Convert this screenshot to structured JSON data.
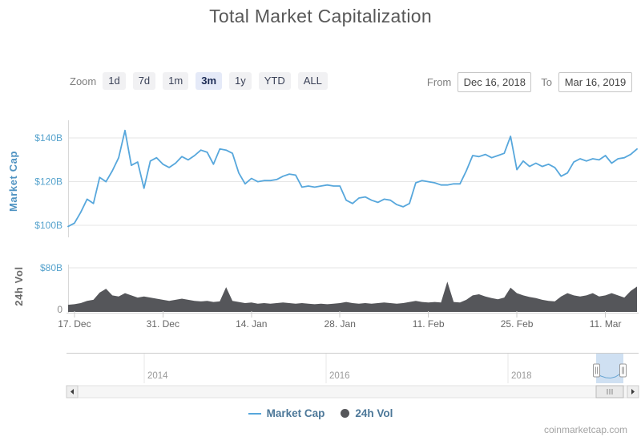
{
  "page": {
    "watermark": "coinmarketcap.com"
  },
  "controls": {
    "zoom_label": "Zoom",
    "zoom_buttons": [
      {
        "label": "1d",
        "selected": false
      },
      {
        "label": "7d",
        "selected": false
      },
      {
        "label": "1m",
        "selected": false
      },
      {
        "label": "3m",
        "selected": true
      },
      {
        "label": "1y",
        "selected": false
      },
      {
        "label": "YTD",
        "selected": false
      },
      {
        "label": "ALL",
        "selected": false
      }
    ],
    "from_label": "From",
    "from_value": "Dec 16, 2018",
    "to_label": "To",
    "to_value": "Mar 16, 2019"
  },
  "legend": [
    {
      "label": "Market Cap",
      "marker": "line",
      "color": "#57a7dc"
    },
    {
      "label": "24h Vol",
      "marker": "circle",
      "color": "#55565a"
    }
  ],
  "chart_data": {
    "type": "line",
    "title": "Total Market Capitalization",
    "x_start": "Dec 16, 2018",
    "x_end": "Mar 16, 2019",
    "x_unit": "days",
    "x_tick_labels": [
      "17. Dec",
      "31. Dec",
      "14. Jan",
      "28. Jan",
      "11. Feb",
      "25. Feb",
      "11. Mar"
    ],
    "x_tick_day_index": [
      1,
      15,
      29,
      43,
      57,
      71,
      85
    ],
    "grid": true,
    "legend_position": "bottom",
    "panes": [
      {
        "ylabel": "Market Cap",
        "yticks": [
          {
            "label": "$140B",
            "value": 140
          },
          {
            "label": "$120B",
            "value": 120
          },
          {
            "label": "$100B",
            "value": 100
          }
        ],
        "ylim": [
          96,
          148
        ],
        "series": {
          "name": "Market Cap",
          "type": "line",
          "color": "#57a7dc",
          "unit": "USD billions",
          "values": [
            99.5,
            101,
            106,
            112,
            110,
            122,
            120,
            125,
            131,
            143.5,
            127.5,
            129,
            117,
            129.5,
            131,
            128,
            126.5,
            128.5,
            131.5,
            130,
            132,
            134.5,
            133.5,
            128,
            135,
            134.5,
            133,
            124,
            119,
            121.5,
            120,
            120.5,
            120.5,
            121,
            122.5,
            123.5,
            123,
            117.5,
            118,
            117.5,
            118,
            118.5,
            118,
            118,
            111.5,
            110,
            112.5,
            113,
            111.5,
            110.5,
            112,
            111.5,
            109.5,
            108.5,
            110,
            119.5,
            120.5,
            120,
            119.5,
            118.5,
            118.5,
            119,
            119,
            125,
            132,
            131.5,
            132.5,
            131,
            132,
            133,
            140.8,
            125.5,
            129.5,
            127,
            128.5,
            127,
            128,
            126.5,
            122.5,
            124,
            129,
            130.5,
            129.5,
            130.5,
            130,
            132,
            128.5,
            130.5,
            131,
            132.5,
            135
          ]
        }
      },
      {
        "ylabel": "24h Vol",
        "yticks": [
          {
            "label": "$80B",
            "value": 80
          },
          {
            "label": "0",
            "value": 0
          }
        ],
        "ylim": [
          0,
          115
        ],
        "series": {
          "name": "24h Vol",
          "type": "area",
          "color": "#55565a",
          "unit": "USD billions",
          "values": [
            13,
            14,
            16,
            20,
            22,
            35,
            42,
            30,
            28,
            34,
            30,
            26,
            28,
            26,
            24,
            22,
            20,
            22,
            24,
            22,
            20,
            19,
            20,
            18,
            19,
            45,
            20,
            18,
            16,
            17,
            15,
            16,
            15,
            16,
            17,
            16,
            15,
            16,
            15,
            14,
            15,
            14,
            15,
            16,
            18,
            16,
            15,
            16,
            15,
            16,
            17,
            16,
            15,
            16,
            18,
            20,
            18,
            17,
            18,
            17,
            55,
            18,
            17,
            22,
            30,
            32,
            28,
            25,
            23,
            26,
            44,
            34,
            30,
            27,
            25,
            22,
            20,
            19,
            28,
            34,
            30,
            28,
            30,
            34,
            28,
            30,
            34,
            30,
            26,
            38,
            46
          ]
        }
      }
    ],
    "navigator": {
      "year_labels": [
        "2014",
        "2016",
        "2018"
      ],
      "selection_fill": "#cfe0f2",
      "visible_range": [
        "Dec 16, 2018",
        "Mar 16, 2019"
      ]
    }
  }
}
